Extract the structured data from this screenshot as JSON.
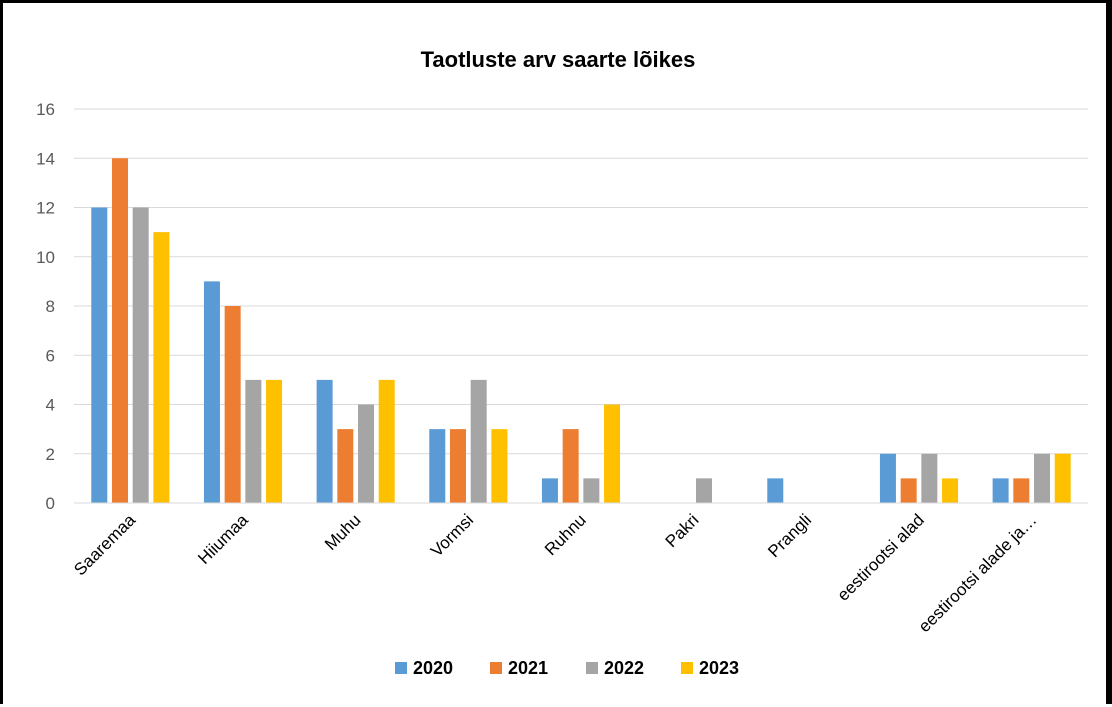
{
  "chart_data": {
    "type": "bar",
    "title": "Taotluste arv saarte lõikes",
    "xlabel": "",
    "ylabel": "",
    "ylim": [
      0,
      16
    ],
    "yticks": [
      0,
      2,
      4,
      6,
      8,
      10,
      12,
      14,
      16
    ],
    "grid": true,
    "legend_position": "bottom",
    "categories": [
      "Saaremaa",
      "Hiiumaa",
      "Muhu",
      "Vormsi",
      "Ruhnu",
      "Pakri",
      "Prangli",
      "eestirootsi alad",
      "eestirootsi alade ja…"
    ],
    "series": [
      {
        "name": "2020",
        "color": "#5b9bd5",
        "values": [
          12,
          9,
          5,
          3,
          1,
          0,
          1,
          2,
          1
        ]
      },
      {
        "name": "2021",
        "color": "#ed7d31",
        "values": [
          14,
          8,
          3,
          3,
          3,
          0,
          0,
          1,
          1
        ]
      },
      {
        "name": "2022",
        "color": "#a5a5a5",
        "values": [
          12,
          5,
          4,
          5,
          1,
          1,
          0,
          2,
          2
        ]
      },
      {
        "name": "2023",
        "color": "#ffc000",
        "values": [
          11,
          5,
          5,
          3,
          4,
          0,
          0,
          1,
          2
        ]
      }
    ]
  }
}
